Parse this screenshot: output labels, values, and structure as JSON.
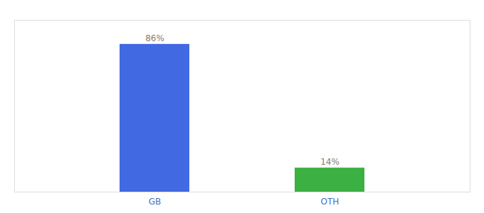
{
  "chart_data": {
    "type": "bar",
    "categories": [
      "GB",
      "OTH"
    ],
    "values": [
      86,
      14
    ],
    "colors": [
      "#4169e1",
      "#3cb043"
    ],
    "value_labels": [
      "86%",
      "14%"
    ],
    "data_labels": true,
    "ylim": [
      0,
      100
    ],
    "tick_labels": "x"
  }
}
